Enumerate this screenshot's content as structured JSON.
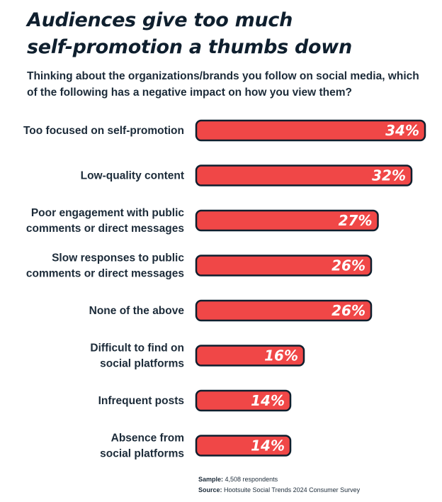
{
  "header": {
    "title_line1": "Audiences give too much",
    "title_line2": "self-promotion a thumbs down",
    "subtitle": "Thinking about the organizations/brands you follow on social media, which of the following has a negative impact on how you view them?"
  },
  "colors": {
    "bar_fill": "#f04747",
    "bar_stroke": "#0f1f2e",
    "text": "#1c2b39"
  },
  "chart_data": {
    "type": "bar",
    "orientation": "horizontal",
    "categories": [
      [
        "Too focused on self-promotion"
      ],
      [
        "Low-quality content"
      ],
      [
        "Poor engagement with public",
        "comments or direct messages"
      ],
      [
        "Slow responses to public",
        "comments or direct messages"
      ],
      [
        "None of the above"
      ],
      [
        "Difficult to find on",
        "social platforms"
      ],
      [
        "Infrequent posts"
      ],
      [
        "Absence from",
        "social platforms"
      ]
    ],
    "values": [
      34,
      32,
      27,
      26,
      26,
      16,
      14,
      14
    ],
    "value_labels": [
      "34%",
      "32%",
      "27%",
      "26%",
      "26%",
      "16%",
      "14%",
      "14%"
    ],
    "xlim": [
      0,
      34
    ],
    "grid": false,
    "legend": "none"
  },
  "footer": {
    "sample_label": "Sample:",
    "sample_value": "4,508 respondents",
    "source_label": "Source:",
    "source_value": "Hootsuite Social Trends 2024 Consumer Survey"
  }
}
